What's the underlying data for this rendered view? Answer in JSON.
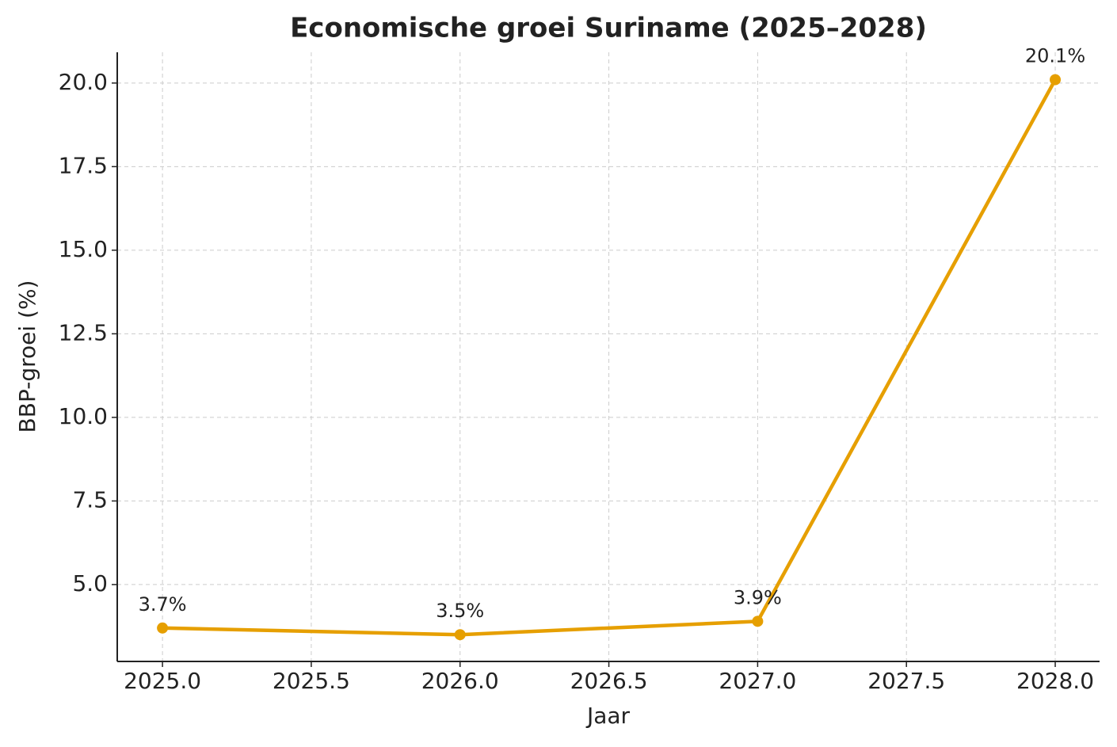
{
  "chart_data": {
    "type": "line",
    "title": "Economische groei Suriname (2025–2028)",
    "x_label": "Jaar",
    "y_label": "BBP-groei (%)",
    "x": [
      2025,
      2026,
      2027,
      2028
    ],
    "series": [
      {
        "name": "BBP-groei",
        "color": "#e69f00",
        "values": [
          3.7,
          3.5,
          3.9,
          20.1
        ],
        "value_labels": [
          "3.7%",
          "3.5%",
          "3.9%",
          "20.1%"
        ]
      }
    ],
    "xlim": [
      2024.848,
      2028.149
    ],
    "xticks": [
      {
        "value": 2025,
        "label": "2025.0"
      },
      2025.5,
      {
        "value": 2026,
        "label": "2026.0"
      },
      2026.5,
      {
        "value": 2027,
        "label": "2027.0"
      },
      2027.5,
      {
        "value": 2028,
        "label": "2028.0"
      }
    ],
    "ylim": [
      2.7,
      20.92
    ],
    "yticks": [
      {
        "value": 5,
        "label": "5.0"
      },
      7.5,
      {
        "value": 10,
        "label": "10.0"
      },
      12.5,
      {
        "value": 15,
        "label": "15.0"
      },
      17.5,
      {
        "value": 20,
        "label": "20.0"
      }
    ],
    "grid": true
  }
}
